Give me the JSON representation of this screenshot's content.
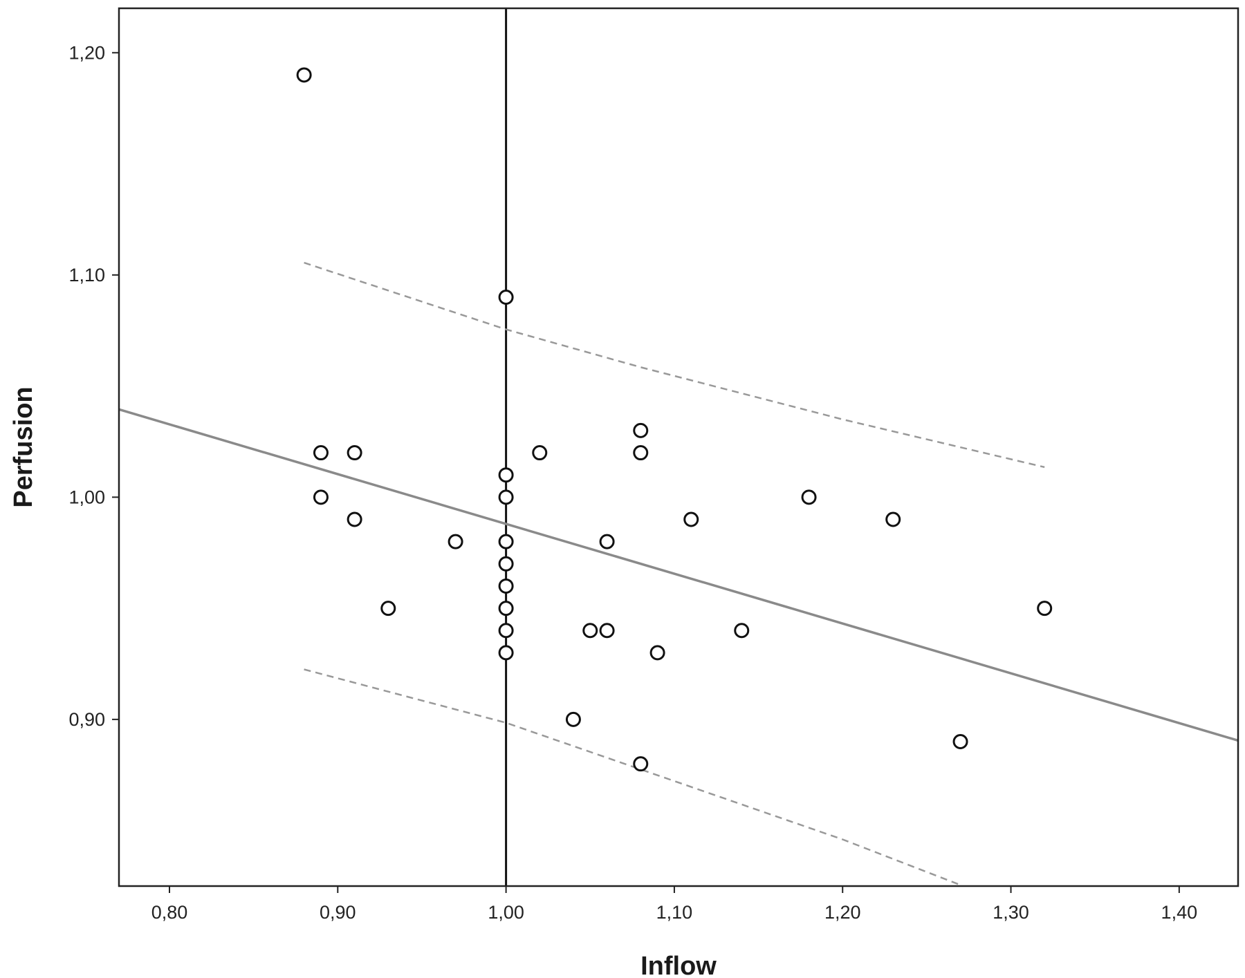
{
  "chart_data": {
    "type": "scatter",
    "xlabel": "Inflow",
    "ylabel": "Perfusion",
    "xlim": [
      0.77,
      1.435
    ],
    "ylim": [
      0.825,
      1.22
    ],
    "x_ticks": [
      {
        "value": 0.8,
        "label": "0,80"
      },
      {
        "value": 0.9,
        "label": "0,90"
      },
      {
        "value": 1.0,
        "label": "1,00"
      },
      {
        "value": 1.1,
        "label": "1,10"
      },
      {
        "value": 1.2,
        "label": "1,20"
      },
      {
        "value": 1.3,
        "label": "1,30"
      },
      {
        "value": 1.4,
        "label": "1,40"
      }
    ],
    "y_ticks": [
      {
        "value": 0.9,
        "label": "0,90"
      },
      {
        "value": 1.0,
        "label": "1,00"
      },
      {
        "value": 1.1,
        "label": "1,10"
      },
      {
        "value": 1.2,
        "label": "1,20"
      }
    ],
    "grid": false,
    "reference_line": {
      "orientation": "vertical",
      "x": 1.0,
      "color": "#111111"
    },
    "points": [
      {
        "x": 0.88,
        "y": 1.19
      },
      {
        "x": 0.89,
        "y": 1.02
      },
      {
        "x": 0.91,
        "y": 1.02
      },
      {
        "x": 0.89,
        "y": 1.0
      },
      {
        "x": 0.91,
        "y": 0.99
      },
      {
        "x": 0.93,
        "y": 0.95
      },
      {
        "x": 0.97,
        "y": 0.98
      },
      {
        "x": 1.0,
        "y": 1.09
      },
      {
        "x": 1.0,
        "y": 1.01
      },
      {
        "x": 1.0,
        "y": 1.0
      },
      {
        "x": 1.0,
        "y": 0.98
      },
      {
        "x": 1.0,
        "y": 0.97
      },
      {
        "x": 1.0,
        "y": 0.96
      },
      {
        "x": 1.0,
        "y": 0.95
      },
      {
        "x": 1.0,
        "y": 0.94
      },
      {
        "x": 1.0,
        "y": 0.93
      },
      {
        "x": 1.02,
        "y": 1.02
      },
      {
        "x": 1.04,
        "y": 0.9
      },
      {
        "x": 1.05,
        "y": 0.94
      },
      {
        "x": 1.06,
        "y": 0.94
      },
      {
        "x": 1.06,
        "y": 0.98
      },
      {
        "x": 1.08,
        "y": 1.03
      },
      {
        "x": 1.08,
        "y": 1.02
      },
      {
        "x": 1.08,
        "y": 0.88
      },
      {
        "x": 1.09,
        "y": 0.93
      },
      {
        "x": 1.11,
        "y": 0.99
      },
      {
        "x": 1.14,
        "y": 0.94
      },
      {
        "x": 1.18,
        "y": 1.0
      },
      {
        "x": 1.23,
        "y": 0.99
      },
      {
        "x": 1.27,
        "y": 0.89
      },
      {
        "x": 1.32,
        "y": 0.95
      }
    ],
    "fit_line": {
      "x": [
        0.77,
        1.435
      ],
      "y": [
        1.0395,
        0.8905
      ],
      "color": "#8a8a8a",
      "style": "solid"
    },
    "confidence_bands": [
      {
        "x": [
          0.88,
          1.0,
          1.08,
          1.2,
          1.32
        ],
        "y": [
          1.1055,
          1.0755,
          1.0585,
          1.035,
          1.0135
        ],
        "color": "#999999",
        "style": "dashed"
      },
      {
        "x": [
          0.88,
          1.0,
          1.08,
          1.2,
          1.27
        ],
        "y": [
          0.9225,
          0.8985,
          0.8775,
          0.846,
          0.8255
        ],
        "color": "#999999",
        "style": "dashed"
      }
    ],
    "marker": {
      "shape": "open-circle",
      "color": "#111111"
    }
  }
}
